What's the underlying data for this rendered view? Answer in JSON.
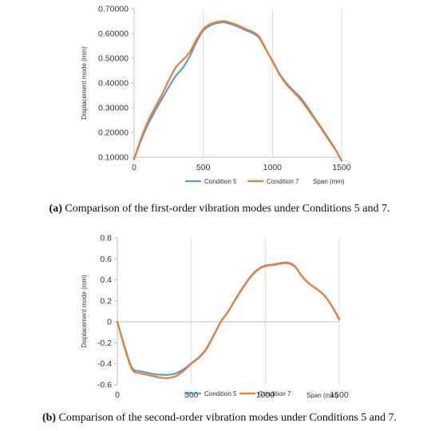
{
  "chart_data": [
    {
      "type": "line",
      "caption_prefix": "(a)",
      "caption_text": " Comparison of the first-order vibration modes under Conditions 5 and 7.",
      "ylabel": "Displacement mode (mm)",
      "xlabel": "Span (mm)",
      "xlim": [
        0,
        1500
      ],
      "ylim": [
        0.1,
        0.7
      ],
      "x_ticks": [
        0,
        500,
        1000,
        1500
      ],
      "y_ticks": [
        0.1,
        0.2,
        0.3,
        0.4,
        0.5,
        0.6,
        0.7
      ],
      "y_tick_labels": [
        "0.10000",
        "0.20000",
        "0.30000",
        "0.40000",
        "0.50000",
        "0.60000",
        "0.70000"
      ],
      "x_tick_labels": [
        "0",
        "500",
        "1000",
        "1500"
      ],
      "grid": "vertical",
      "legend_position": "bottom-center",
      "series": [
        {
          "name": "Condition 5",
          "color": "#5b9bd5",
          "x": [
            0,
            50,
            100,
            150,
            200,
            250,
            300,
            350,
            400,
            450,
            500,
            550,
            600,
            650,
            700,
            750,
            800,
            850,
            900,
            950,
            1000,
            1050,
            1100,
            1150,
            1200,
            1250,
            1300,
            1350,
            1400,
            1450,
            1500
          ],
          "y": [
            0.093,
            0.168,
            0.232,
            0.285,
            0.335,
            0.383,
            0.428,
            0.46,
            0.505,
            0.565,
            0.612,
            0.632,
            0.642,
            0.645,
            0.638,
            0.628,
            0.615,
            0.603,
            0.585,
            0.538,
            0.49,
            0.438,
            0.4,
            0.37,
            0.343,
            0.305,
            0.263,
            0.222,
            0.18,
            0.136,
            0.085
          ]
        },
        {
          "name": "Condition 7",
          "color": "#ed7d31",
          "x": [
            0,
            50,
            100,
            150,
            200,
            250,
            300,
            350,
            400,
            450,
            500,
            550,
            600,
            650,
            700,
            750,
            800,
            850,
            900,
            950,
            1000,
            1050,
            1100,
            1150,
            1200,
            1250,
            1300,
            1350,
            1400,
            1450,
            1500
          ],
          "y": [
            0.092,
            0.175,
            0.245,
            0.3,
            0.352,
            0.41,
            0.462,
            0.492,
            0.523,
            0.575,
            0.618,
            0.638,
            0.647,
            0.65,
            0.643,
            0.633,
            0.62,
            0.608,
            0.59,
            0.54,
            0.488,
            0.435,
            0.395,
            0.365,
            0.335,
            0.298,
            0.258,
            0.218,
            0.176,
            0.134,
            0.088
          ]
        }
      ]
    },
    {
      "type": "line",
      "caption_prefix": "(b)",
      "caption_text": " Comparison of the second-order vibration modes under Conditions 5 and 7.",
      "ylabel": "Displacement mode (mm)",
      "xlabel": "Span (mm)",
      "xlim": [
        0,
        1500
      ],
      "ylim": [
        -0.6,
        0.8
      ],
      "x_ticks": [
        0,
        500,
        1000,
        1500
      ],
      "y_ticks": [
        -0.6,
        -0.4,
        -0.2,
        0,
        0.2,
        0.4,
        0.6,
        0.8
      ],
      "y_tick_labels": [
        "-0.6",
        "-0.4",
        "-0.2",
        "0",
        "0.2",
        "0.4",
        "0.6",
        "0.8"
      ],
      "x_tick_labels": [
        "0",
        "500",
        "1000",
        "1500"
      ],
      "grid": "vertical",
      "legend_position": "bottom-center",
      "series": [
        {
          "name": "Condition 5",
          "color": "#5b9bd5",
          "x": [
            0,
            50,
            100,
            150,
            200,
            250,
            300,
            350,
            400,
            450,
            500,
            550,
            600,
            650,
            700,
            750,
            800,
            850,
            900,
            950,
            1000,
            1050,
            1100,
            1150,
            1200,
            1250,
            1300,
            1350,
            1400,
            1450,
            1500
          ],
          "y": [
            0,
            -0.24,
            -0.44,
            -0.47,
            -0.485,
            -0.5,
            -0.505,
            -0.505,
            -0.49,
            -0.45,
            -0.395,
            -0.34,
            -0.26,
            -0.13,
            0.0,
            0.1,
            0.22,
            0.33,
            0.43,
            0.5,
            0.535,
            0.545,
            0.558,
            0.565,
            0.53,
            0.43,
            0.36,
            0.31,
            0.25,
            0.15,
            0.02
          ]
        },
        {
          "name": "Condition 7",
          "color": "#ed7d31",
          "x": [
            0,
            50,
            100,
            150,
            200,
            250,
            300,
            350,
            400,
            450,
            500,
            550,
            600,
            650,
            700,
            750,
            800,
            850,
            900,
            950,
            1000,
            1050,
            1100,
            1150,
            1200,
            1250,
            1300,
            1350,
            1400,
            1450,
            1500
          ],
          "y": [
            0,
            -0.25,
            -0.455,
            -0.49,
            -0.505,
            -0.52,
            -0.535,
            -0.535,
            -0.515,
            -0.465,
            -0.4,
            -0.345,
            -0.265,
            -0.135,
            0.0,
            0.1,
            0.215,
            0.325,
            0.425,
            0.495,
            0.53,
            0.54,
            0.552,
            0.558,
            0.525,
            0.43,
            0.36,
            0.31,
            0.25,
            0.15,
            0.03
          ]
        }
      ]
    }
  ]
}
